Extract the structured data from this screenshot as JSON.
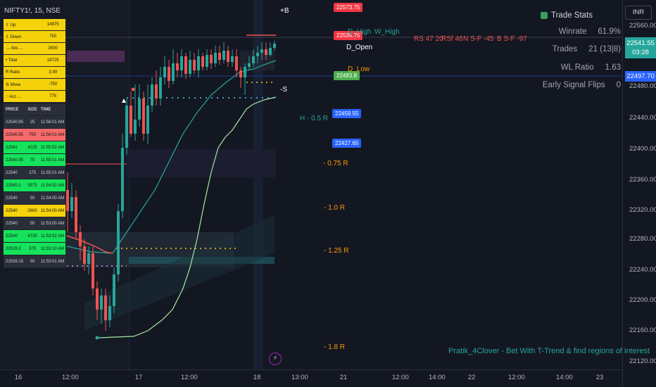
{
  "symbol": "NIFTY1!, 15, NSE",
  "side_table": [
    {
      "label": "⇧ Up",
      "value": "14975"
    },
    {
      "label": "⇩ Down",
      "value": "750"
    },
    {
      "label": "→ Abs ...",
      "value": "3000"
    },
    {
      "label": "• Total",
      "value": "18725"
    },
    {
      "label": "R Ratio",
      "value": "3.99"
    },
    {
      "label": "⇅ Move",
      "value": "-750"
    },
    {
      "label": "∷ Acc ...",
      "value": "775"
    }
  ],
  "tape": {
    "headers": [
      "PRICE",
      "SIZE",
      "TIME"
    ],
    "rows": [
      {
        "price": "22540.95",
        "size": "25",
        "time": "11:56:01 AM",
        "style": "gy"
      },
      {
        "price": "22540.95",
        "size": "750",
        "time": "11:56:01 AM",
        "style": "rd"
      },
      {
        "price": "22541",
        "size": "4225",
        "time": "11:55:52 AM",
        "style": "g"
      },
      {
        "price": "22540.95",
        "size": "75",
        "time": "11:55:01 AM",
        "style": "g"
      },
      {
        "price": "22540",
        "size": "275",
        "time": "11:55:01 AM",
        "style": "gy"
      },
      {
        "price": "22540.1",
        "size": "5575",
        "time": "11:54:52 AM",
        "style": "g"
      },
      {
        "price": "22540",
        "size": "50",
        "time": "11:54:00 AM",
        "style": "gy"
      },
      {
        "price": "22540",
        "size": "2600",
        "time": "11:54:00 AM",
        "style": "yl"
      },
      {
        "price": "22540",
        "size": "50",
        "time": "11:53:00 AM",
        "style": "gy"
      },
      {
        "price": "22540",
        "size": "4725",
        "time": "11:53:52 AM",
        "style": "g"
      },
      {
        "price": "22539.2",
        "size": "375",
        "time": "11:53:10 AM",
        "style": "g"
      },
      {
        "price": "22539.15",
        "size": "50",
        "time": "11:53:01 AM",
        "style": "gy"
      }
    ]
  },
  "stats": {
    "title": "Trade Stats",
    "icon": "chart-icon",
    "rows": [
      {
        "label": "Winrate",
        "value": "61.9%"
      },
      {
        "label": "Trades",
        "value": "21 (13|8)"
      },
      {
        "label": "WL Ratio",
        "value": "1.63"
      },
      {
        "label": "Early Signal Flips",
        "value": "0"
      }
    ]
  },
  "currency": "INR",
  "price_axis": [
    "22560.00",
    "22520.00",
    "22480.00",
    "22440.00",
    "22400.00",
    "22360.00",
    "22320.00",
    "22280.00",
    "22240.00",
    "22200.00",
    "22160.00",
    "22120.00"
  ],
  "current_price": {
    "value": "22541.55",
    "countdown": "03:28",
    "color": "#26a69a"
  },
  "crosshair_price": "22497.70",
  "time_axis": [
    "16",
    "12:00",
    "17",
    "12:00",
    "18",
    "13:00",
    "21",
    "12:00",
    "14:00",
    "22",
    "12:00",
    "14:00",
    "23"
  ],
  "tags": [
    {
      "text": "22573.75",
      "color": "#f23645"
    },
    {
      "text": "22535.75",
      "color": "#f23645"
    },
    {
      "text": "22483.8",
      "color": "#4caf50"
    },
    {
      "text": "22459.55",
      "color": "#2962ff"
    },
    {
      "text": "22427.65",
      "color": "#2962ff"
    }
  ],
  "labels": {
    "plus_b": "+B",
    "minus_s": "-S",
    "d_high": "D_High",
    "w_high": "W_High",
    "d_open": "D_Open",
    "d_low": "D_Low",
    "h05": "H - 0.5 R",
    "l075": "- 0.75 R",
    "l10": "- 1.0 R",
    "l125": "- 1.25 R",
    "l18": "- 1.8 R",
    "rs": "RS 47 20",
    "rsf": "RSf 46",
    "nsf": "N S-F -45",
    "bsf": "B S-F -97"
  },
  "footer": "Pratik_4Clover - Bet With T-Trend & find regions of interest",
  "colors": {
    "up": "#26a69a",
    "down": "#ef5350",
    "bg": "#131722",
    "grid": "#1e2230"
  }
}
